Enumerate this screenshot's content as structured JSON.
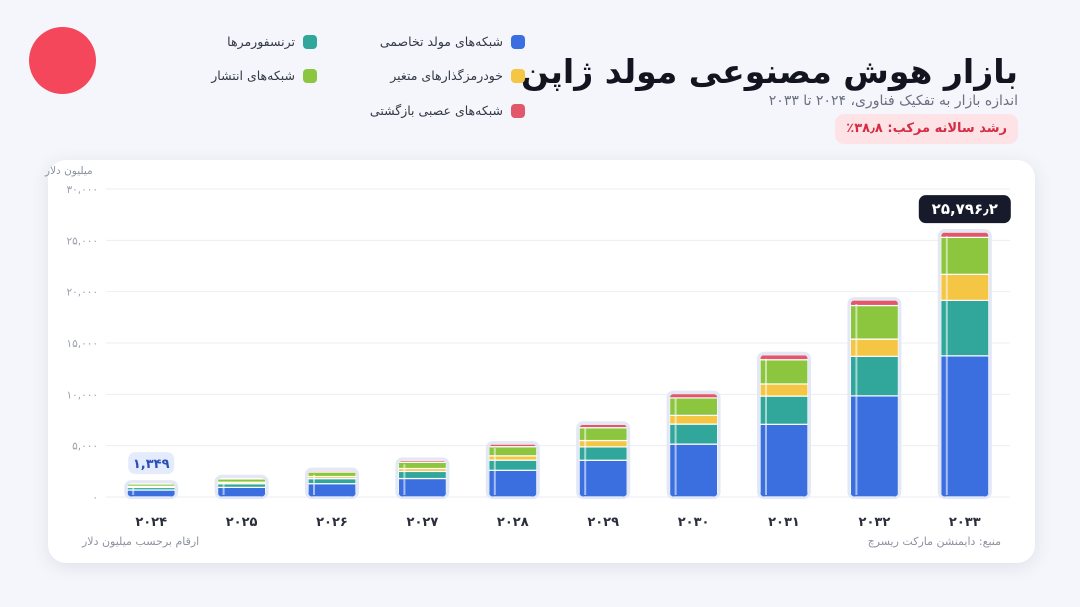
{
  "header": {
    "title": "بازار هوش مصنوعی مولد ژاپن",
    "subtitle": "اندازه بازار به تفکیک فناوری، ۲۰۲۴ تا ۲۰۳۳",
    "cagr_label": "رشد سالانه مرکب: ۳۸٫۸٪"
  },
  "legend": [
    {
      "label": "شبکه‌های مولد تخاصمی",
      "color": "#3b6fe0"
    },
    {
      "label": "ترنسفورمرها",
      "color": "#31a79c"
    },
    {
      "label": "خودرمزگذارهای متغیر",
      "color": "#f5c544"
    },
    {
      "label": "شبکه‌های انتشار",
      "color": "#8cc63f"
    },
    {
      "label": "شبکه‌های عصبی بازگشتی",
      "color": "#e0586a"
    }
  ],
  "footer": {
    "note": "ارقام برحسب میلیون دلار",
    "source": "منبع: دایمنشن مارکت ریسرچ"
  },
  "chart_data": {
    "type": "bar",
    "stacked": true,
    "categories": [
      "۲۰۲۴",
      "۲۰۲۵",
      "۲۰۲۶",
      "۲۰۲۷",
      "۲۰۲۸",
      "۲۰۲۹",
      "۲۰۳۰",
      "۲۰۳۱",
      "۲۰۳۲",
      "۲۰۳۳"
    ],
    "series": [
      {
        "name": "شبکه‌های مولد تخاصمی",
        "color": "#3b6fe0",
        "values": [
          680,
          940,
          1300,
          1800,
          2600,
          3580,
          5150,
          7080,
          9850,
          13750
        ]
      },
      {
        "name": "ترنسفورمرها",
        "color": "#31a79c",
        "values": [
          250,
          350,
          490,
          690,
          990,
          1300,
          1950,
          2750,
          3850,
          5400
        ]
      },
      {
        "name": "خودرمزگذارهای متغیر",
        "color": "#f5c544",
        "values": [
          110,
          150,
          205,
          285,
          420,
          620,
          850,
          1180,
          1680,
          2540
        ]
      },
      {
        "name": "شبکه‌های انتشار",
        "color": "#8cc63f",
        "values": [
          230,
          320,
          440,
          610,
          890,
          1250,
          1700,
          2360,
          3270,
          3600
        ]
      },
      {
        "name": "شبکه‌های عصبی بازگشتی",
        "color": "#e0586a",
        "values": [
          79,
          110,
          135,
          185,
          250,
          330,
          420,
          480,
          530,
          506
        ]
      }
    ],
    "data_labels": [
      {
        "category": "۲۰۲۴",
        "text": "۱,۳۴۹"
      },
      {
        "category": "۲۰۳۳",
        "text": "۲۵,۷۹۶٫۲"
      }
    ],
    "y_ticks": [
      {
        "value": 0,
        "label": "۰"
      },
      {
        "value": 5000,
        "label": "۵,۰۰۰"
      },
      {
        "value": 10000,
        "label": "۱۰,۰۰۰"
      },
      {
        "value": 15000,
        "label": "۱۵,۰۰۰"
      },
      {
        "value": 20000,
        "label": "۲۰,۰۰۰"
      },
      {
        "value": 25000,
        "label": "۲۵,۰۰۰"
      },
      {
        "value": 30000,
        "label": "۳۰,۰۰۰"
      }
    ],
    "ylabel": "میلیون دلار",
    "ylim": [
      0,
      30000
    ],
    "grid": true
  }
}
